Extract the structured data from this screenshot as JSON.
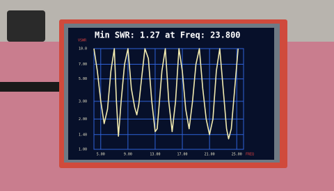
{
  "chart_data": {
    "type": "line",
    "title": "Min SWR: 1.27 at Freq: 23.800",
    "y_label": "VSWR",
    "x_label": "FREQ",
    "log_scale": true,
    "grid": true,
    "x": [
      4.0,
      4.5,
      5.0,
      5.5,
      6.0,
      6.5,
      7.0,
      7.3,
      7.6,
      8.0,
      8.5,
      9.0,
      9.5,
      10.0,
      10.3,
      10.6,
      11.0,
      11.5,
      12.0,
      12.5,
      13.0,
      13.3,
      13.6,
      14.0,
      14.5,
      15.0,
      15.5,
      16.0,
      16.5,
      17.0,
      17.5,
      18.0,
      18.5,
      19.0,
      19.5,
      20.0,
      20.5,
      21.0,
      21.5,
      22.0,
      22.5,
      23.0,
      23.5,
      23.8,
      24.2,
      24.7,
      25.2
    ],
    "series": [
      {
        "color": "#f2ebb0",
        "values": [
          10,
          6,
          3,
          1.8,
          2.5,
          6,
          10,
          3,
          1.35,
          3,
          7,
          10,
          4,
          2.6,
          2.2,
          2.8,
          5,
          10,
          8,
          3,
          1.5,
          1.6,
          2.8,
          6,
          10,
          3,
          1.5,
          3,
          10,
          6,
          2.5,
          1.6,
          3,
          7,
          10,
          4,
          2,
          1.4,
          2,
          6,
          10,
          4,
          1.6,
          1.27,
          1.6,
          4,
          10
        ]
      }
    ],
    "xlim": [
      4,
      26
    ],
    "ylim": [
      1,
      10
    ],
    "xticks": [
      {
        "value": 5,
        "label": "5.00"
      },
      {
        "value": 9,
        "label": "9.00"
      },
      {
        "value": 13,
        "label": "13.00"
      },
      {
        "value": 17,
        "label": "17.00"
      },
      {
        "value": 21,
        "label": "21.00"
      },
      {
        "value": 25,
        "label": "25.00"
      }
    ],
    "yticks": [
      {
        "value": 1,
        "label": "1.00"
      },
      {
        "value": 1.4,
        "label": "1.40"
      },
      {
        "value": 2,
        "label": "2.00"
      },
      {
        "value": 3,
        "label": "3.00"
      },
      {
        "value": 5,
        "label": "5.00"
      },
      {
        "value": 7,
        "label": "7.00"
      },
      {
        "value": 10,
        "label": "10.0"
      }
    ]
  }
}
